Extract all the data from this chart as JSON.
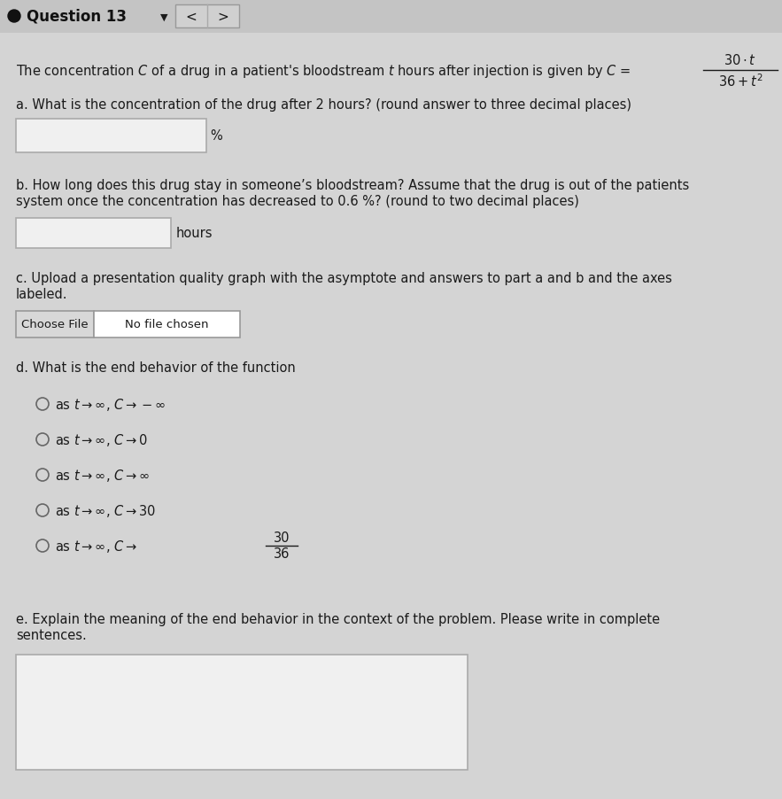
{
  "bg_color": "#d4d4d4",
  "white": "#ffffff",
  "black": "#111111",
  "text_color": "#1a1a1a",
  "title": "Question 13",
  "part_a_suffix": "%",
  "part_b_suffix": "hours",
  "choose_file_text": "Choose File",
  "no_file_text": "No file chosen",
  "font_size_title": 12,
  "font_size_body": 10.5,
  "font_size_small": 9.5,
  "title_bar_color": "#c4c4c4",
  "nav_box_color": "#d0d0d0",
  "choose_btn_color": "#d8d8d8",
  "input_box_color": "#f0f0f0",
  "radio_options_latex": [
    "as $t \\rightarrow \\infty$, $C \\rightarrow -\\infty$",
    "as $t \\rightarrow \\infty$, $C \\rightarrow 0$",
    "as $t \\rightarrow \\infty$, $C \\rightarrow \\infty$",
    "as $t \\rightarrow \\infty$, $C \\rightarrow 30$",
    "as $t \\rightarrow \\infty$, $C \\rightarrow$"
  ]
}
